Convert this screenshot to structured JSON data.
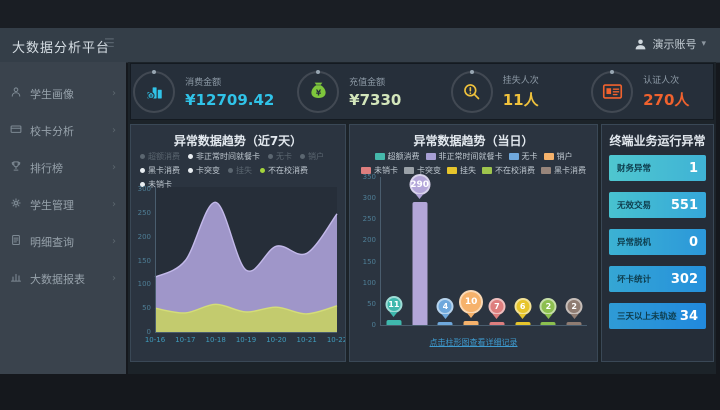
{
  "header": {
    "title": "大数据分析平台",
    "user": "演示账号"
  },
  "sidebar": {
    "items": [
      {
        "label": "学生画像",
        "icon": "user-icon"
      },
      {
        "label": "校卡分析",
        "icon": "card-icon"
      },
      {
        "label": "排行榜",
        "icon": "trophy-icon"
      },
      {
        "label": "学生管理",
        "icon": "gear-icon"
      },
      {
        "label": "明细查询",
        "icon": "doc-icon"
      },
      {
        "label": "大数据报表",
        "icon": "report-icon"
      }
    ]
  },
  "metrics": [
    {
      "label": "消费金额",
      "value": "¥12709.42",
      "icon": "consume-icon",
      "color": "#30c3e8",
      "value_color": "#30c3e8"
    },
    {
      "label": "充值金额",
      "value": "¥7330",
      "icon": "money-bag-icon",
      "color": "#7ec63c",
      "value_color": "#d3e6bb"
    },
    {
      "label": "挂失人次",
      "value": "11人",
      "icon": "loss-report-icon",
      "color": "#f0c23c",
      "value_color": "#f0c23c"
    },
    {
      "label": "认证人次",
      "value": "270人",
      "icon": "id-card-icon",
      "color": "#f0622e",
      "value_color": "#f0622e"
    }
  ],
  "chart_data": [
    {
      "type": "area",
      "title": "异常数据趋势（近7天）",
      "x": [
        "10-16",
        "10-17",
        "10-18",
        "10-19",
        "10-20",
        "10-21",
        "10-22"
      ],
      "series": [
        {
          "name": "非正常时间就餐卡",
          "color": "#a9a0d6",
          "line": "#c3b9ea",
          "values": [
            115,
            150,
            272,
            130,
            180,
            165,
            248
          ]
        },
        {
          "name": "不在校消费",
          "color": "#c5cf66",
          "line": "#d4dd78",
          "values": [
            50,
            40,
            58,
            42,
            52,
            38,
            55
          ]
        }
      ],
      "ylim": [
        0,
        300
      ],
      "yticks": [
        0,
        50,
        100,
        150,
        200,
        250,
        300
      ],
      "legend": [
        {
          "label": "超额消费",
          "on": false
        },
        {
          "label": "非正常时间就餐卡",
          "on": true
        },
        {
          "label": "无卡",
          "on": false
        },
        {
          "label": "销户",
          "on": false
        },
        {
          "label": "黑卡消费",
          "on": true
        },
        {
          "label": "卡突变",
          "on": true
        },
        {
          "label": "挂失",
          "on": false
        },
        {
          "label": "不在校消费",
          "on": true,
          "accent": true
        },
        {
          "label": "未销卡",
          "on": true
        }
      ]
    },
    {
      "type": "bar",
      "title": "异常数据趋势（当日）",
      "categories": [
        "超额消费",
        "非正常时间就餐卡",
        "无卡",
        "销户",
        "未销卡",
        "挂失",
        "不在校消费",
        "黑卡消费"
      ],
      "values": [
        11,
        290,
        4,
        10,
        7,
        6,
        2,
        2
      ],
      "colors": [
        "#3fb8ad",
        "#b3a6d9",
        "#6fa8dc",
        "#f6b26b",
        "#de7e7e",
        "#e7c52c",
        "#8cbf4f",
        "#8f7c72"
      ],
      "ylim": [
        0,
        350
      ],
      "yticks": [
        0,
        50,
        100,
        150,
        200,
        250,
        300,
        350
      ],
      "legend": [
        {
          "label": "超额消费",
          "color": "#45b8ab"
        },
        {
          "label": "非正常时间就餐卡",
          "color": "#a79fd4"
        },
        {
          "label": "无卡",
          "color": "#6fa8dc"
        },
        {
          "label": "销户",
          "color": "#f6b26b"
        },
        {
          "label": "未销卡",
          "color": "#de7e7e"
        },
        {
          "label": "卡突变",
          "color": "#9aa1a8"
        },
        {
          "label": "挂失",
          "color": "#e7c52c"
        },
        {
          "label": "不在校消费",
          "color": "#9fc54d"
        },
        {
          "label": "黑卡消费",
          "color": "#98857b"
        }
      ],
      "footer_link": "点击柱形图查看详细记录"
    }
  ],
  "terminal_panel": {
    "title": "终端业务运行异常",
    "items": [
      {
        "label": "财务异常",
        "value": "1"
      },
      {
        "label": "无效交易",
        "value": "551"
      },
      {
        "label": "异常脱机",
        "value": "0"
      },
      {
        "label": "坏卡统计",
        "value": "302"
      },
      {
        "label": "三天以上未轨迹",
        "value": "34"
      }
    ]
  }
}
